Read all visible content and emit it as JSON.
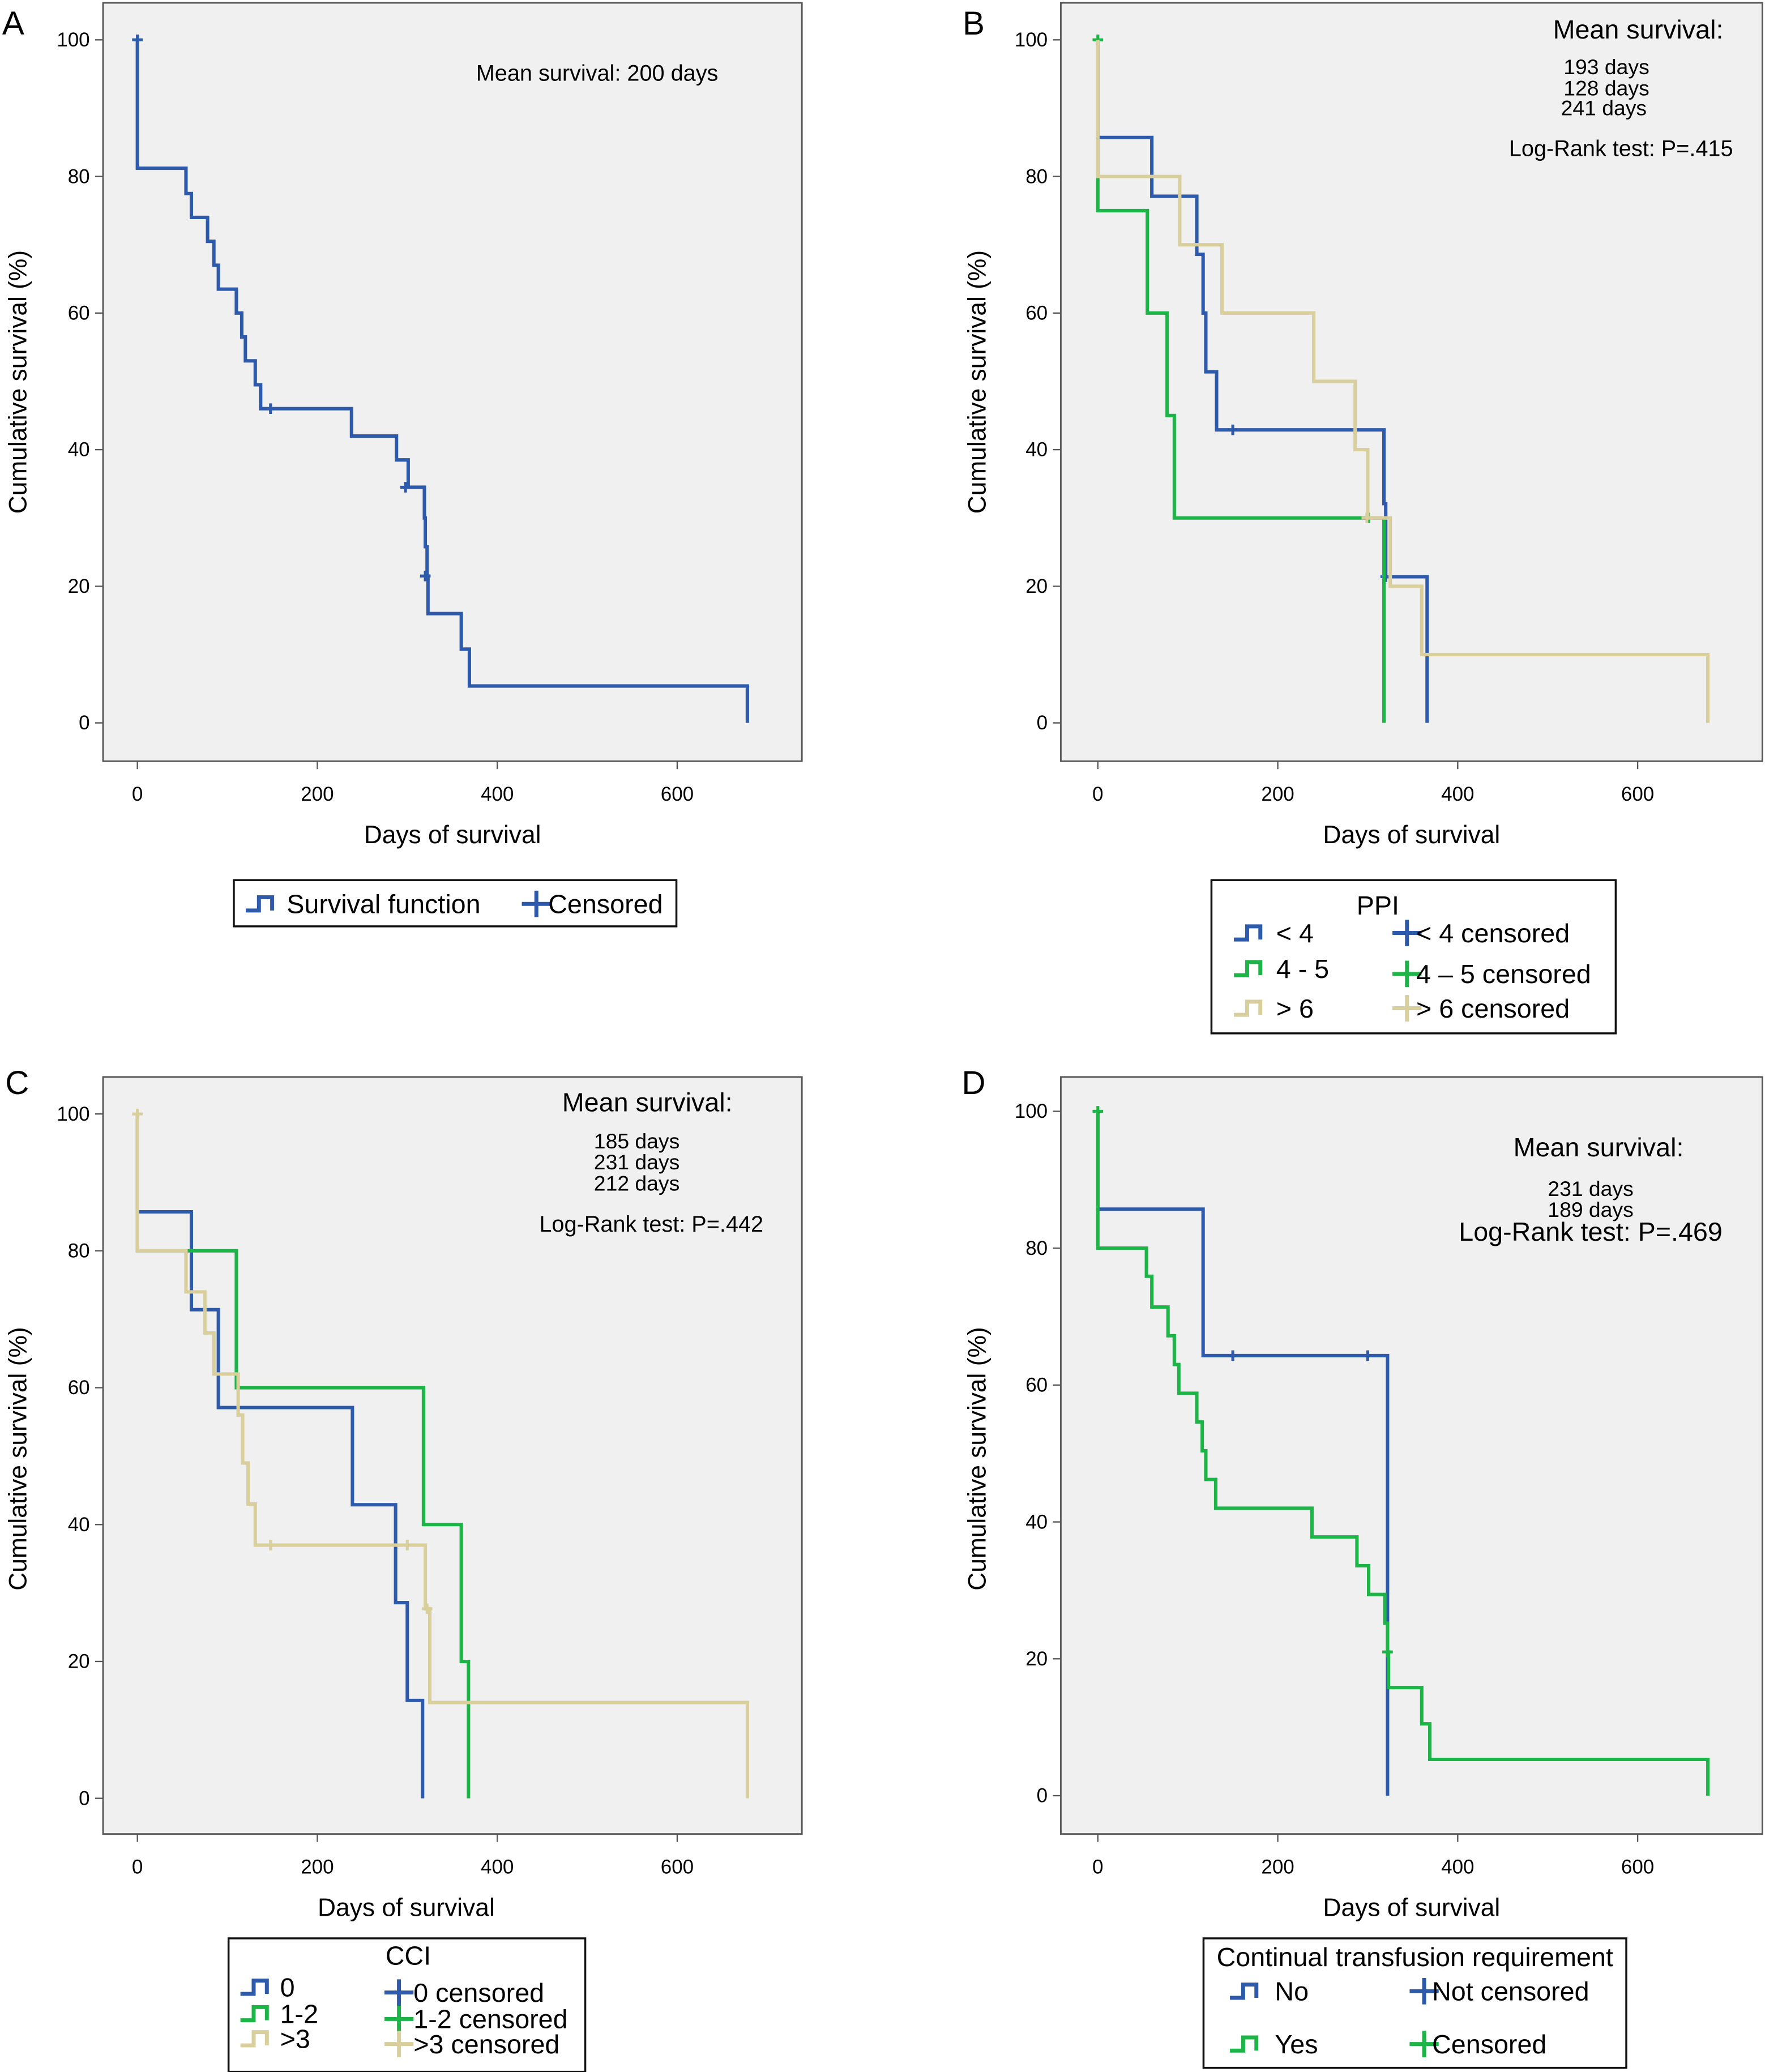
{
  "colors": {
    "blue": "#2e5aac",
    "green": "#1db548",
    "tan": "#d8cf9c",
    "plot_bg": "#f0f0f0"
  },
  "chart_data": [
    {
      "panel_label": "A",
      "type": "line",
      "title": "",
      "xlabel": "Days of survival",
      "ylabel": "Cumulative survival (%)",
      "xlim": [
        0,
        740
      ],
      "ylim": [
        0,
        100
      ],
      "xticks": [
        0,
        200,
        400,
        600
      ],
      "yticks": [
        0,
        20,
        40,
        60,
        80,
        100
      ],
      "grid": false,
      "annotations": [
        "Mean survival: 200 days"
      ],
      "legend": {
        "title": "",
        "placement": "bottom",
        "entries": [
          {
            "label": "Survival function",
            "kind": "line",
            "series": 0
          },
          {
            "label": "Censored",
            "kind": "censor",
            "series": 0
          }
        ]
      },
      "series": [
        {
          "name": "Survival function",
          "color": "#2e5aac",
          "steps": [
            [
              0,
              100
            ],
            [
              0,
              81.2
            ],
            [
              54,
              77.5
            ],
            [
              60,
              74
            ],
            [
              78,
              70.5
            ],
            [
              85,
              67
            ],
            [
              90,
              63.5
            ],
            [
              110,
              60
            ],
            [
              116,
              56.5
            ],
            [
              120,
              53
            ],
            [
              131,
              49.5
            ],
            [
              137,
              46
            ],
            [
              238,
              42
            ],
            [
              288,
              38.5
            ],
            [
              301,
              34.5
            ],
            [
              319,
              30
            ],
            [
              320,
              25.8
            ],
            [
              322,
              21.5
            ],
            [
              323,
              16
            ],
            [
              360,
              10.8
            ],
            [
              369,
              5.4
            ],
            [
              678,
              0
            ]
          ],
          "censored": [
            [
              0,
              100
            ],
            [
              148,
              46
            ],
            [
              298,
              34.5
            ],
            [
              320,
              21.5
            ]
          ]
        }
      ]
    },
    {
      "panel_label": "B",
      "type": "line",
      "title": "",
      "xlabel": "Days of survival",
      "ylabel": "Cumulative survival (%)",
      "xlim": [
        0,
        740
      ],
      "ylim": [
        0,
        100
      ],
      "xticks": [
        0,
        200,
        400,
        600
      ],
      "yticks": [
        0,
        20,
        40,
        60,
        80,
        100
      ],
      "grid": false,
      "annotations": [
        "Mean survival:",
        "193 days",
        "128 days",
        "241 days",
        "Log-Rank test: P=.415"
      ],
      "legend": {
        "title": "PPI",
        "placement": "bottom",
        "entries": [
          {
            "label": "< 4",
            "kind": "line",
            "series": 0
          },
          {
            "label": "4 - 5",
            "kind": "line",
            "series": 1
          },
          {
            "label": "> 6",
            "kind": "line",
            "series": 2
          },
          {
            "label": "< 4 censored",
            "kind": "censor",
            "series": 0
          },
          {
            "label": "4 – 5 censored",
            "kind": "censor",
            "series": 1
          },
          {
            "label": "> 6 censored",
            "kind": "censor",
            "series": 2
          }
        ]
      },
      "series": [
        {
          "name": "< 4",
          "color": "#2e5aac",
          "steps": [
            [
              0,
              100
            ],
            [
              0,
              85.7
            ],
            [
              60,
              77.1
            ],
            [
              110,
              68.6
            ],
            [
              117,
              60
            ],
            [
              120,
              51.4
            ],
            [
              132,
              42.9
            ],
            [
              318,
              32.1
            ],
            [
              320,
              21.4
            ],
            [
              366,
              0
            ]
          ],
          "censored": [
            [
              150,
              42.9
            ],
            [
              320,
              21.4
            ]
          ]
        },
        {
          "name": "4 - 5",
          "color": "#1db548",
          "steps": [
            [
              0,
              100
            ],
            [
              0,
              75
            ],
            [
              55,
              60
            ],
            [
              77,
              45
            ],
            [
              85,
              30
            ],
            [
              318,
              0
            ]
          ],
          "censored": [
            [
              0,
              100
            ],
            [
              301,
              30
            ]
          ]
        },
        {
          "name": "> 6",
          "color": "#d8cf9c",
          "steps": [
            [
              0,
              100
            ],
            [
              0,
              80
            ],
            [
              91,
              70
            ],
            [
              138,
              60
            ],
            [
              240,
              50
            ],
            [
              286,
              40
            ],
            [
              300,
              30
            ],
            [
              325,
              20
            ],
            [
              360,
              10
            ],
            [
              678,
              0
            ]
          ],
          "censored": [
            [
              299,
              30
            ]
          ]
        }
      ]
    },
    {
      "panel_label": "C",
      "type": "line",
      "title": "",
      "xlabel": "Days of survival",
      "ylabel": "Cumulative survival (%)",
      "xlim": [
        0,
        740
      ],
      "ylim": [
        0,
        100
      ],
      "xticks": [
        0,
        200,
        400,
        600
      ],
      "yticks": [
        0,
        20,
        40,
        60,
        80,
        100
      ],
      "grid": false,
      "annotations": [
        "Mean survival:",
        "185 days",
        "231 days",
        "212 days",
        "Log-Rank test: P=.442"
      ],
      "legend": {
        "title": "CCI",
        "placement": "bottom",
        "entries": [
          {
            "label": "0",
            "kind": "line",
            "series": 0
          },
          {
            "label": "1-2",
            "kind": "line",
            "series": 1
          },
          {
            "label": ">3",
            "kind": "line",
            "series": 2
          },
          {
            "label": "0 censored",
            "kind": "censor",
            "series": 0
          },
          {
            "label": "1-2 censored",
            "kind": "censor",
            "series": 1
          },
          {
            "label": ">3 censored",
            "kind": "censor",
            "series": 2
          }
        ]
      },
      "series": [
        {
          "name": "0",
          "color": "#2e5aac",
          "steps": [
            [
              0,
              100
            ],
            [
              0,
              85.7
            ],
            [
              60,
              71.4
            ],
            [
              90,
              57.1
            ],
            [
              239,
              42.9
            ],
            [
              287,
              28.6
            ],
            [
              300,
              14.3
            ],
            [
              317,
              0
            ]
          ],
          "censored": []
        },
        {
          "name": "1-2",
          "color": "#1db548",
          "steps": [
            [
              0,
              100
            ],
            [
              0,
              80
            ],
            [
              110,
              60
            ],
            [
              318,
              40
            ],
            [
              360,
              20
            ],
            [
              368,
              0
            ]
          ],
          "censored": []
        },
        {
          "name": ">3",
          "color": "#d8cf9c",
          "steps": [
            [
              0,
              100
            ],
            [
              0,
              80
            ],
            [
              54,
              74
            ],
            [
              75,
              68
            ],
            [
              85,
              62
            ],
            [
              112,
              56
            ],
            [
              117,
              49
            ],
            [
              123,
              43
            ],
            [
              131,
              37
            ],
            [
              320,
              27.7
            ],
            [
              325,
              14
            ],
            [
              678,
              0
            ]
          ],
          "censored": [
            [
              0,
              100
            ],
            [
              148,
              37
            ],
            [
              300,
              37
            ],
            [
              322,
              27.7
            ]
          ]
        }
      ]
    },
    {
      "panel_label": "D",
      "type": "line",
      "title": "",
      "xlabel": "Days of survival",
      "ylabel": "Cumulative survival (%)",
      "xlim": [
        0,
        740
      ],
      "ylim": [
        0,
        100
      ],
      "xticks": [
        0,
        200,
        400,
        600
      ],
      "yticks": [
        0,
        20,
        40,
        60,
        80,
        100
      ],
      "grid": false,
      "annotations": [
        "Mean survival:",
        "231 days",
        "189 days",
        "Log-Rank test: P=.469"
      ],
      "legend": {
        "title": "Continual transfusion requirement",
        "placement": "bottom",
        "entries": [
          {
            "label": "No",
            "kind": "line",
            "series": 0
          },
          {
            "label": "Yes",
            "kind": "line",
            "series": 1
          },
          {
            "label": "Not censored",
            "kind": "censor",
            "series": 0
          },
          {
            "label": "Censored",
            "kind": "censor",
            "series": 1
          }
        ]
      },
      "series": [
        {
          "name": "No",
          "color": "#2e5aac",
          "steps": [
            [
              0,
              100
            ],
            [
              0,
              85.7
            ],
            [
              117,
              64.3
            ],
            [
              322,
              0
            ]
          ],
          "censored": [
            [
              150,
              64.3
            ],
            [
              300,
              64.3
            ]
          ]
        },
        {
          "name": "Yes",
          "color": "#1db548",
          "steps": [
            [
              0,
              100
            ],
            [
              0,
              80
            ],
            [
              54,
              75.9
            ],
            [
              60,
              71.4
            ],
            [
              78,
              67.2
            ],
            [
              85,
              63
            ],
            [
              90,
              58.8
            ],
            [
              110,
              54.6
            ],
            [
              116,
              50.4
            ],
            [
              120,
              46.2
            ],
            [
              131,
              42
            ],
            [
              238,
              37.8
            ],
            [
              288,
              33.6
            ],
            [
              301,
              29.4
            ],
            [
              319,
              25.2
            ],
            [
              322,
              21
            ],
            [
              323,
              15.8
            ],
            [
              360,
              10.5
            ],
            [
              369,
              5.3
            ],
            [
              678,
              0
            ]
          ],
          "censored": [
            [
              0,
              100
            ],
            [
              322,
              21
            ]
          ]
        }
      ]
    }
  ]
}
